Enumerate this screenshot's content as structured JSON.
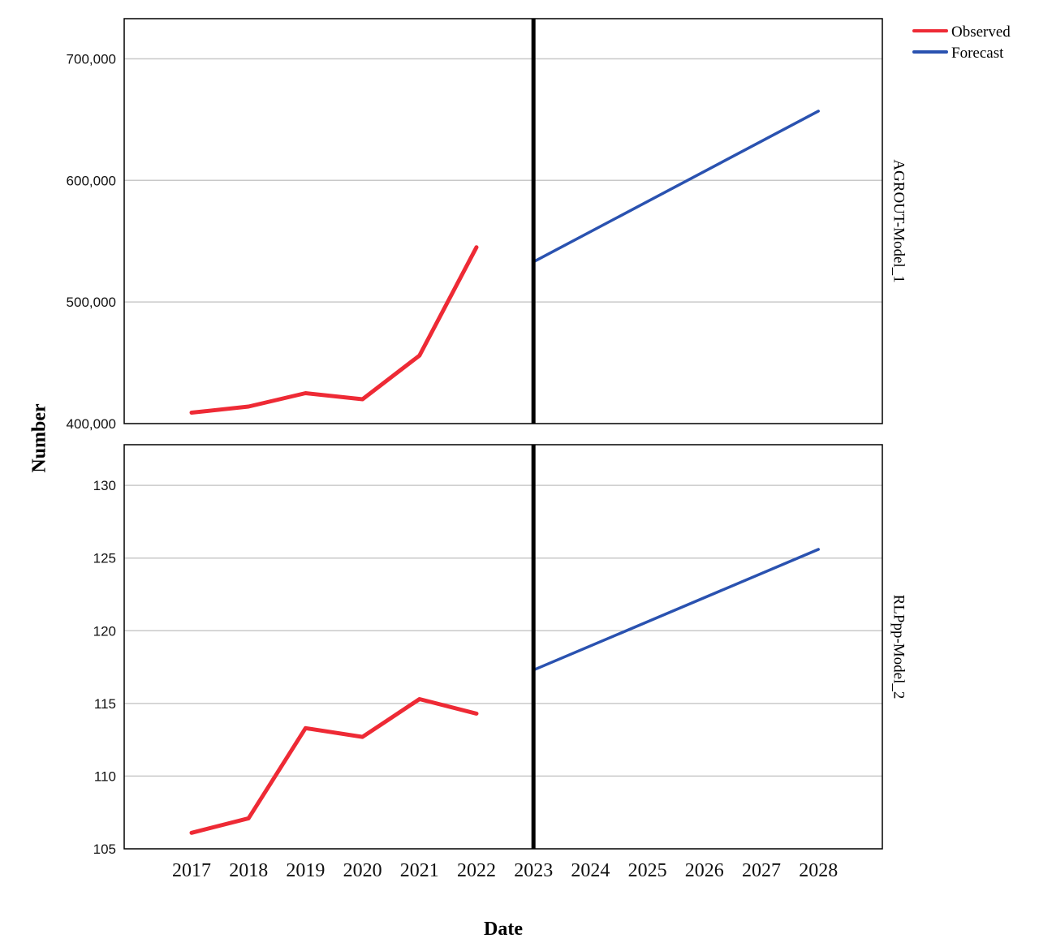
{
  "chart_data": {
    "type": "line",
    "xlabel": "Date",
    "ylabel": "Number",
    "x_ticks": [
      "2017",
      "2018",
      "2019",
      "2020",
      "2021",
      "2022",
      "2023",
      "2024",
      "2025",
      "2026",
      "2027",
      "2028"
    ],
    "forecast_start": "2023",
    "legend": {
      "placement": "top-right",
      "entries": [
        {
          "name": "Observed",
          "color": "#ee2a35"
        },
        {
          "name": "Forecast",
          "color": "#2a52b0"
        }
      ]
    },
    "grid": true,
    "panels": [
      {
        "label": "AGROUT-Model_1",
        "ylim": [
          400000,
          733000
        ],
        "yticks": [
          400000,
          500000,
          600000,
          700000
        ],
        "ytick_labels": [
          "400,000",
          "500,000",
          "600,000",
          "700,000"
        ],
        "series": [
          {
            "name": "Observed",
            "x": [
              "2017",
              "2018",
              "2019",
              "2020",
              "2021",
              "2022"
            ],
            "values": [
              409000,
              414000,
              425000,
              420000,
              456000,
              545000
            ]
          },
          {
            "name": "Forecast",
            "x": [
              "2023",
              "2028"
            ],
            "values": [
              533000,
              657000
            ]
          }
        ]
      },
      {
        "label": "RLPpp-Model_2",
        "ylim": [
          105,
          132.8
        ],
        "yticks": [
          105,
          110,
          115,
          120,
          125,
          130
        ],
        "ytick_labels": [
          "105",
          "110",
          "115",
          "120",
          "125",
          "130"
        ],
        "series": [
          {
            "name": "Observed",
            "x": [
              "2017",
              "2018",
              "2019",
              "2020",
              "2021",
              "2022"
            ],
            "values": [
              106.1,
              107.1,
              113.3,
              112.7,
              115.3,
              114.3
            ]
          },
          {
            "name": "Forecast",
            "x": [
              "2023",
              "2028"
            ],
            "values": [
              117.3,
              125.6
            ]
          }
        ]
      }
    ]
  }
}
